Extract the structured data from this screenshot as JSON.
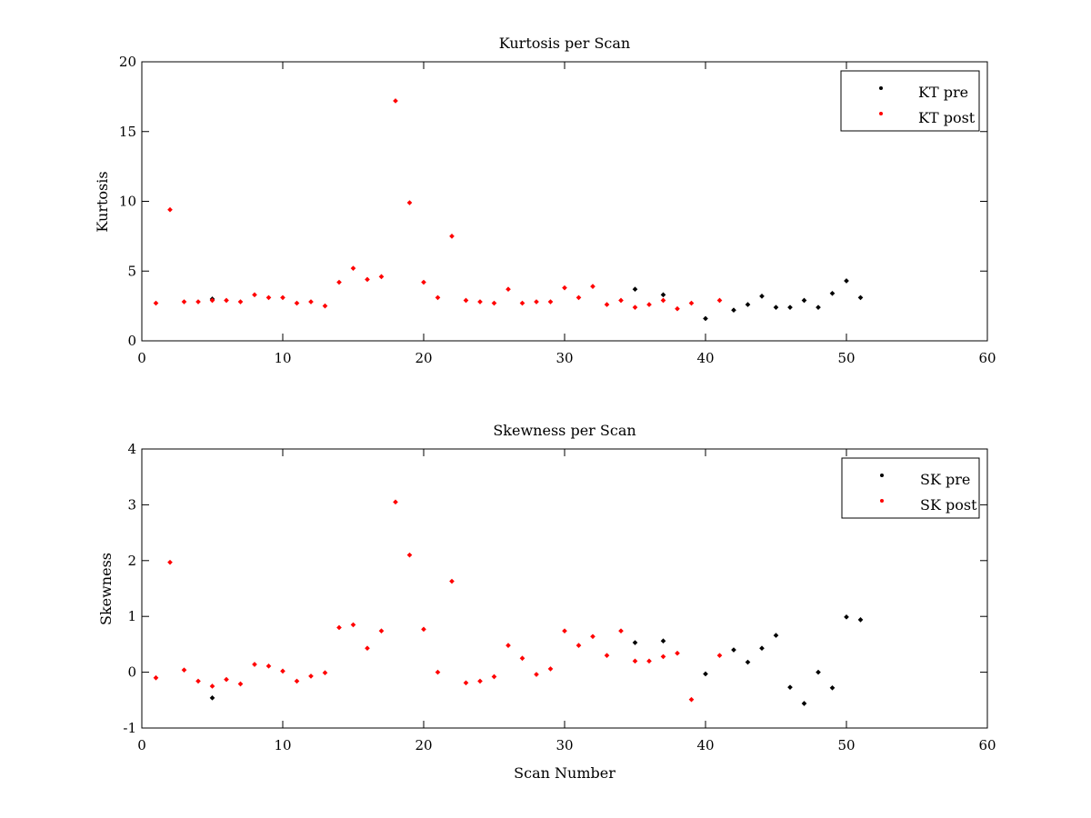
{
  "chart_data": [
    {
      "type": "scatter",
      "title": "Kurtosis per Scan",
      "xlabel": "",
      "ylabel": "Kurtosis",
      "xlim": [
        0,
        60
      ],
      "ylim": [
        0,
        20
      ],
      "xticks": [
        0,
        10,
        20,
        30,
        40,
        50,
        60
      ],
      "yticks": [
        0,
        5,
        10,
        15,
        20
      ],
      "grid": false,
      "legend_position": "top-right",
      "series": [
        {
          "name": "KT pre",
          "color": "#000000",
          "x": [
            5,
            35,
            37,
            40,
            42,
            43,
            44,
            45,
            46,
            47,
            48,
            49,
            50,
            51
          ],
          "y": [
            3.0,
            3.7,
            3.3,
            1.6,
            2.2,
            2.6,
            3.2,
            2.4,
            2.4,
            2.9,
            2.4,
            3.4,
            4.3,
            3.1
          ]
        },
        {
          "name": "KT post",
          "color": "#ff0000",
          "x": [
            1,
            2,
            3,
            4,
            5,
            6,
            7,
            8,
            9,
            10,
            11,
            12,
            13,
            14,
            15,
            16,
            17,
            18,
            19,
            20,
            21,
            22,
            23,
            24,
            25,
            26,
            27,
            28,
            29,
            30,
            31,
            32,
            33,
            34,
            35,
            36,
            37,
            38,
            39,
            41
          ],
          "y": [
            2.7,
            9.4,
            2.8,
            2.8,
            2.9,
            2.9,
            2.8,
            3.3,
            3.1,
            3.1,
            2.7,
            2.8,
            2.5,
            4.2,
            5.2,
            4.4,
            4.6,
            17.2,
            9.9,
            4.2,
            3.1,
            7.5,
            2.9,
            2.8,
            2.7,
            3.7,
            2.7,
            2.8,
            2.8,
            3.8,
            3.1,
            3.9,
            2.6,
            2.9,
            2.4,
            2.6,
            2.9,
            2.3,
            2.7,
            2.9
          ]
        }
      ]
    },
    {
      "type": "scatter",
      "title": "Skewness per Scan",
      "xlabel": "Scan Number",
      "ylabel": "Skewness",
      "xlim": [
        0,
        60
      ],
      "ylim": [
        -1,
        4
      ],
      "xticks": [
        0,
        10,
        20,
        30,
        40,
        50,
        60
      ],
      "yticks": [
        -1,
        0,
        1,
        2,
        3,
        4
      ],
      "grid": false,
      "legend_position": "top-right",
      "series": [
        {
          "name": "SK pre",
          "color": "#000000",
          "x": [
            5,
            35,
            37,
            40,
            42,
            43,
            44,
            45,
            46,
            47,
            48,
            49,
            50,
            51
          ],
          "y": [
            -0.46,
            0.53,
            0.56,
            -0.03,
            0.4,
            0.18,
            0.43,
            0.66,
            -0.27,
            -0.56,
            0.0,
            -0.28,
            0.99,
            0.94
          ]
        },
        {
          "name": "SK post",
          "color": "#ff0000",
          "x": [
            1,
            2,
            3,
            4,
            5,
            6,
            7,
            8,
            9,
            10,
            11,
            12,
            13,
            14,
            15,
            16,
            17,
            18,
            19,
            20,
            21,
            22,
            23,
            24,
            25,
            26,
            27,
            28,
            29,
            30,
            31,
            32,
            33,
            34,
            35,
            36,
            37,
            38,
            39,
            41
          ],
          "y": [
            -0.1,
            1.97,
            0.04,
            -0.16,
            -0.25,
            -0.13,
            -0.21,
            0.14,
            0.11,
            0.02,
            -0.16,
            -0.07,
            -0.01,
            0.8,
            0.85,
            0.43,
            0.74,
            3.05,
            2.1,
            0.77,
            0.0,
            1.63,
            -0.19,
            -0.16,
            -0.08,
            0.48,
            0.25,
            -0.04,
            0.06,
            0.74,
            0.48,
            0.64,
            0.3,
            0.74,
            0.2,
            0.2,
            0.28,
            0.34,
            -0.49,
            0.3
          ]
        }
      ]
    }
  ]
}
